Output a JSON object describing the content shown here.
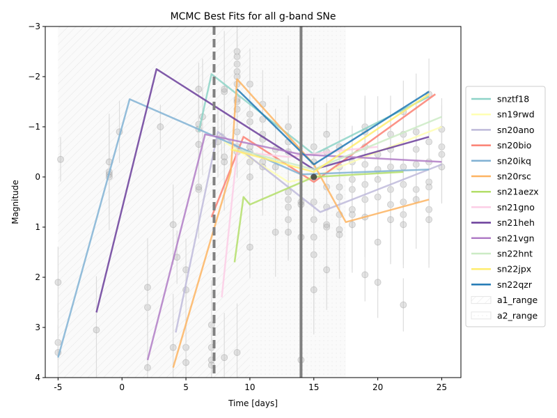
{
  "chart_data": {
    "type": "line",
    "title": "MCMC Best Fits for all g-band SNe",
    "xlabel": "Time [days]",
    "ylabel": "Magnitude",
    "xlim": [
      -6.0,
      26.5
    ],
    "ylim": [
      4,
      -3
    ],
    "y_inverted": true,
    "x_ticks": [
      -5,
      0,
      5,
      10,
      15,
      20,
      25
    ],
    "y_ticks": [
      -3,
      -2,
      -1,
      0,
      1,
      2,
      3,
      4
    ],
    "y_tick_labels": [
      "−3",
      "−2",
      "−1",
      "0",
      "1",
      "2",
      "3",
      "4"
    ],
    "legend_position": "right-outside",
    "series": [
      {
        "name": "snztf18",
        "color": "#8dd3c7",
        "x": [
          6,
          7,
          15,
          24
        ],
        "y": [
          -0.9,
          -2.05,
          -0.45,
          -1.6
        ]
      },
      {
        "name": "sn19rwd",
        "color": "#ffffb3",
        "x": [
          8,
          13,
          15,
          25
        ],
        "y": [
          -0.7,
          0.1,
          0.0,
          -1.0
        ]
      },
      {
        "name": "sn20ano",
        "color": "#bebada",
        "x": [
          4.2,
          7.5,
          15.5,
          25
        ],
        "y": [
          3.1,
          -0.9,
          0.7,
          -0.25
        ]
      },
      {
        "name": "sn20bio",
        "color": "#fb8072",
        "x": [
          7,
          9.5,
          15,
          24.5
        ],
        "y": [
          0.8,
          -0.8,
          0.1,
          -1.65
        ]
      },
      {
        "name": "sn20ikq",
        "color": "#80b1d3",
        "x": [
          -5,
          0.6,
          6,
          14,
          24
        ],
        "y": [
          3.6,
          -1.55,
          -0.95,
          -0.05,
          -0.15
        ]
      },
      {
        "name": "sn20rsc",
        "color": "#fdb462",
        "x": [
          4,
          8.5,
          9,
          15,
          17.5,
          24
        ],
        "y": [
          3.8,
          -0.1,
          -1.95,
          -0.25,
          0.9,
          0.45
        ]
      },
      {
        "name": "sn21aezx",
        "color": "#b3de69",
        "x": [
          8.8,
          9.5,
          10,
          15,
          22
        ],
        "y": [
          1.7,
          0.4,
          0.55,
          0.0,
          -0.1
        ]
      },
      {
        "name": "sn21gno",
        "color": "#fccde5",
        "x": [
          7.8,
          9,
          13,
          18,
          20
        ],
        "y": [
          2.4,
          -0.5,
          -0.4,
          -0.55,
          -0.6
        ]
      },
      {
        "name": "sn21heh",
        "color": "#6a3d9a",
        "x": [
          -2,
          2.7,
          15,
          24
        ],
        "y": [
          2.7,
          -2.15,
          -0.15,
          -0.8
        ]
      },
      {
        "name": "sn21vgn",
        "color": "#b07cc6",
        "x": [
          2,
          6.5,
          14,
          25
        ],
        "y": [
          3.65,
          -0.85,
          -0.45,
          -0.3
        ]
      },
      {
        "name": "sn22hnt",
        "color": "#ccebc5",
        "x": [
          9,
          15,
          25
        ],
        "y": [
          -0.55,
          -0.15,
          -1.2
        ]
      },
      {
        "name": "sn22jpx",
        "color": "#ffed6f",
        "x": [
          8.5,
          15,
          24
        ],
        "y": [
          -0.55,
          -0.1,
          -1.65
        ]
      },
      {
        "name": "sn22qzr",
        "color": "#1f78b4",
        "x": [
          9,
          15,
          24
        ],
        "y": [
          -1.75,
          -0.25,
          -1.7
        ]
      }
    ],
    "vertical_lines": [
      {
        "x": 7.2,
        "style": "dashed",
        "color": "#808080"
      },
      {
        "x": 14.0,
        "style": "solid",
        "color": "#808080"
      }
    ],
    "shaded_ranges": [
      {
        "name": "a1_range",
        "x": [
          -5.0,
          10.0
        ]
      },
      {
        "name": "a2_range",
        "x": [
          10.0,
          17.5
        ]
      }
    ],
    "observations": [
      [
        -5,
        3.3
      ],
      [
        -5,
        3.5
      ],
      [
        -5,
        2.1
      ],
      [
        -4.8,
        -0.35
      ],
      [
        -2,
        3.05
      ],
      [
        -1,
        -0.05
      ],
      [
        -1,
        0.0
      ],
      [
        -1,
        -0.1
      ],
      [
        -1,
        -0.3
      ],
      [
        -0.2,
        -0.9
      ],
      [
        2,
        2.6
      ],
      [
        2,
        2.2
      ],
      [
        2,
        3.8
      ],
      [
        3,
        -1.0
      ],
      [
        4,
        3.4
      ],
      [
        4,
        0.95
      ],
      [
        4.3,
        1.6
      ],
      [
        5,
        3.4
      ],
      [
        5,
        3.7
      ],
      [
        5,
        1.85
      ],
      [
        5,
        2.25
      ],
      [
        6,
        0.25
      ],
      [
        6,
        0.2
      ],
      [
        6,
        -1.05
      ],
      [
        6,
        -0.95
      ],
      [
        6,
        -0.65
      ],
      [
        6,
        -1.75
      ],
      [
        6.3,
        -1.2
      ],
      [
        7,
        2.95
      ],
      [
        7,
        3.4
      ],
      [
        7,
        3.65
      ],
      [
        7,
        3.75
      ],
      [
        7.5,
        -0.7
      ],
      [
        7.8,
        -0.8
      ],
      [
        8,
        -0.4
      ],
      [
        8,
        -0.3
      ],
      [
        8,
        -1.7
      ],
      [
        8,
        -1.75
      ],
      [
        8,
        3.6
      ],
      [
        9,
        -2.4
      ],
      [
        9,
        -2.5
      ],
      [
        9,
        -2.25
      ],
      [
        9,
        -2.0
      ],
      [
        9,
        -2.1
      ],
      [
        9,
        -1.85
      ],
      [
        9,
        -1.5
      ],
      [
        9,
        -1.55
      ],
      [
        9,
        -1.35
      ],
      [
        9,
        -0.9
      ],
      [
        9,
        -0.6
      ],
      [
        9,
        -0.5
      ],
      [
        9,
        3.5
      ],
      [
        10,
        -1.85
      ],
      [
        10,
        -1.25
      ],
      [
        10,
        -1.1
      ],
      [
        10,
        -0.6
      ],
      [
        10,
        -0.5
      ],
      [
        10,
        -0.3
      ],
      [
        10,
        0.0
      ],
      [
        10,
        1.4
      ],
      [
        11,
        -1.45
      ],
      [
        11,
        -1.15
      ],
      [
        11,
        -0.85
      ],
      [
        11,
        -0.75
      ],
      [
        11,
        -0.3
      ],
      [
        11,
        -0.2
      ],
      [
        12,
        -0.55
      ],
      [
        12,
        -0.2
      ],
      [
        12,
        1.1
      ],
      [
        13,
        -1.0
      ],
      [
        13,
        -0.7
      ],
      [
        13,
        -0.5
      ],
      [
        13,
        0.3
      ],
      [
        13,
        0.45
      ],
      [
        13,
        0.6
      ],
      [
        13,
        0.85
      ],
      [
        13,
        1.1
      ],
      [
        14,
        0.5
      ],
      [
        14,
        0.55
      ],
      [
        14,
        1.2
      ],
      [
        14,
        3.65
      ],
      [
        15,
        -0.6
      ],
      [
        15,
        -0.3
      ],
      [
        15,
        0.0
      ],
      [
        15,
        0.5
      ],
      [
        15,
        0.85
      ],
      [
        15,
        1.2
      ],
      [
        15,
        1.55
      ],
      [
        15,
        2.25
      ],
      [
        16,
        -0.85
      ],
      [
        16,
        -0.5
      ],
      [
        16,
        0.2
      ],
      [
        16,
        0.6
      ],
      [
        16,
        0.95
      ],
      [
        16,
        1.0
      ],
      [
        16,
        1.85
      ],
      [
        17,
        -0.6
      ],
      [
        17,
        -0.2
      ],
      [
        17,
        0.2
      ],
      [
        17,
        0.4
      ],
      [
        17,
        0.75
      ],
      [
        17,
        1.05
      ],
      [
        17,
        1.15
      ],
      [
        18,
        -0.3
      ],
      [
        18,
        0.05
      ],
      [
        18,
        0.25
      ],
      [
        18,
        0.65
      ],
      [
        18,
        0.75
      ],
      [
        18,
        0.95
      ],
      [
        19,
        -1.0
      ],
      [
        19,
        -0.9
      ],
      [
        19,
        -0.6
      ],
      [
        19,
        -0.25
      ],
      [
        19,
        0.15
      ],
      [
        19,
        0.45
      ],
      [
        19,
        0.8
      ],
      [
        19,
        1.95
      ],
      [
        20,
        -0.45
      ],
      [
        20,
        -0.15
      ],
      [
        20,
        0.05
      ],
      [
        20,
        0.4
      ],
      [
        20,
        1.3
      ],
      [
        20,
        2.1
      ],
      [
        21,
        -0.85
      ],
      [
        21,
        -0.55
      ],
      [
        21,
        -0.2
      ],
      [
        21,
        0.25
      ],
      [
        21,
        0.55
      ],
      [
        21,
        0.85
      ],
      [
        22,
        -1.3
      ],
      [
        22,
        -0.85
      ],
      [
        22,
        -0.2
      ],
      [
        22,
        0.15
      ],
      [
        22,
        0.5
      ],
      [
        22,
        0.75
      ],
      [
        22,
        0.95
      ],
      [
        22,
        2.55
      ],
      [
        23,
        -0.9
      ],
      [
        23,
        -0.55
      ],
      [
        23,
        -0.25
      ],
      [
        23,
        0.25
      ],
      [
        23,
        0.45
      ],
      [
        24,
        -1.65
      ],
      [
        24,
        -0.7
      ],
      [
        24,
        -0.3
      ],
      [
        24,
        0.1
      ],
      [
        24,
        0.2
      ],
      [
        24,
        0.65
      ],
      [
        24,
        0.85
      ],
      [
        25,
        -0.95
      ],
      [
        25,
        -0.6
      ],
      [
        25,
        -0.45
      ],
      [
        25,
        -0.2
      ]
    ]
  }
}
